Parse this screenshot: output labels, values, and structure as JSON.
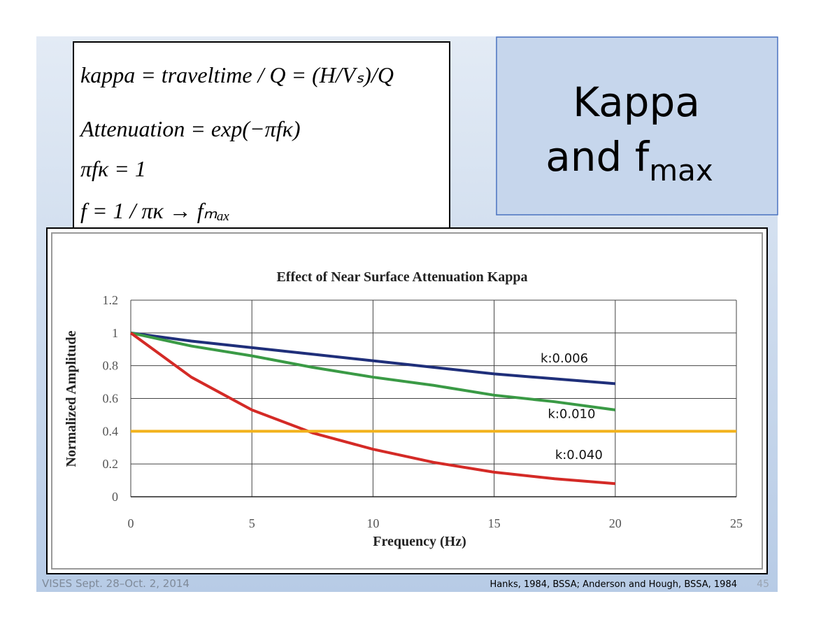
{
  "slide": {
    "equations": [
      "kappa = traveltime / Q = (H/Vₛ)/Q",
      "Attenuation = exp(−πfκ)",
      "πfκ = 1",
      "f = 1 / πκ → fₘₐₓ"
    ],
    "title_line1": "Kappa",
    "title_line2": "and f",
    "title_sub": "max",
    "footer_left": "VISES Sept. 28–Oct. 2, 2014",
    "footer_right": "Hanks, 1984, BSSA; Anderson and Hough, BSSA, 1984",
    "page_number": "45"
  },
  "chart_data": {
    "type": "line",
    "title": "Effect of Near Surface Attenuation Kappa",
    "x_label": "Frequency (Hz)",
    "y_label": "Normalized Amplitude",
    "x": [
      0,
      2.5,
      5,
      7.5,
      10,
      12.5,
      15,
      17.5,
      20,
      22.5,
      25
    ],
    "series": [
      {
        "name": "k:0.006",
        "color": "#1f2f7a",
        "values": [
          1,
          0.95,
          0.91,
          0.87,
          0.83,
          0.79,
          0.75,
          0.72,
          0.69,
          null,
          null
        ]
      },
      {
        "name": "k:0.010",
        "color": "#3a9a45",
        "values": [
          1,
          0.92,
          0.86,
          0.79,
          0.73,
          0.68,
          0.62,
          0.58,
          0.53,
          null,
          null
        ]
      },
      {
        "name": "k:0.040",
        "color": "#d42a26",
        "values": [
          1,
          0.73,
          0.53,
          0.39,
          0.29,
          0.21,
          0.15,
          0.11,
          0.08,
          null,
          null
        ]
      },
      {
        "color": "#f2b21c",
        "values": [
          0.4,
          0.4,
          0.4,
          0.4,
          0.4,
          0.4,
          0.4,
          0.4,
          0.4,
          0.4,
          0.4
        ]
      }
    ],
    "xlim": [
      0,
      25
    ],
    "xticks": [
      0,
      5,
      10,
      15,
      20,
      25
    ],
    "ylim": [
      0,
      1.2
    ],
    "yticks": [
      0,
      0.2,
      0.4,
      0.6,
      0.8,
      1,
      1.2
    ],
    "grid": true
  }
}
